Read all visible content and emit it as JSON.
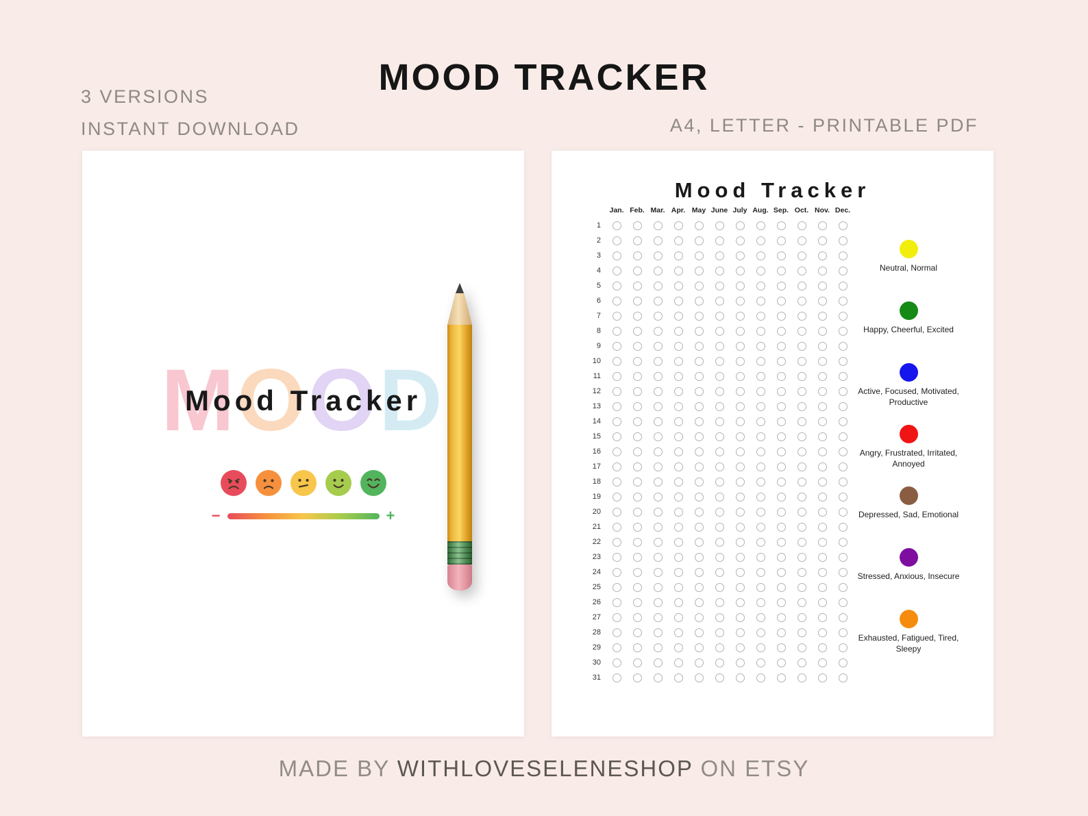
{
  "page": {
    "title": "MOOD TRACKER",
    "versions": "3 VERSIONS",
    "download": "INSTANT DOWNLOAD",
    "format": "A4, LETTER - PRINTABLE PDF",
    "footer": {
      "made_by": "MADE BY",
      "shop_name": "WITHLOVESELENESHOP",
      "on_etsy": "ON ETSY"
    }
  },
  "cover": {
    "title": "Mood Tracker",
    "background_word": "MOOD",
    "background_letters": [
      {
        "char": "M",
        "color": "#f8c7d0"
      },
      {
        "char": "O",
        "color": "#fbd9bd"
      },
      {
        "char": "O",
        "color": "#e2d4f4"
      },
      {
        "char": "D",
        "color": "#d4ebf4"
      }
    ],
    "mood_faces": [
      {
        "name": "angry",
        "color": "#e84c5c"
      },
      {
        "name": "sad",
        "color": "#f6903d"
      },
      {
        "name": "neutral",
        "color": "#f7c64a"
      },
      {
        "name": "happy",
        "color": "#a5cc4d"
      },
      {
        "name": "very-happy",
        "color": "#52b55e"
      }
    ],
    "scale": {
      "minus": "−",
      "plus": "+"
    }
  },
  "tracker": {
    "title": "Mood Tracker",
    "months": [
      "Jan.",
      "Feb.",
      "Mar.",
      "Apr.",
      "May",
      "June",
      "July",
      "Aug.",
      "Sep.",
      "Oct.",
      "Nov.",
      "Dec."
    ],
    "days": 31,
    "legend": [
      {
        "color": "#f2ee0c",
        "label": "Neutral, Normal"
      },
      {
        "color": "#168a16",
        "label": "Happy, Cheerful, Excited"
      },
      {
        "color": "#1515ee",
        "label": "Active, Focused, Motivated, Productive"
      },
      {
        "color": "#f01414",
        "label": "Angry, Frustrated, Irritated, Annoyed"
      },
      {
        "color": "#8a5c42",
        "label": "Depressed, Sad, Emotional"
      },
      {
        "color": "#7d0ea0",
        "label": "Stressed, Anxious, Insecure"
      },
      {
        "color": "#f68c0e",
        "label": "Exhausted, Fatigued, Tired, Sleepy"
      }
    ]
  }
}
